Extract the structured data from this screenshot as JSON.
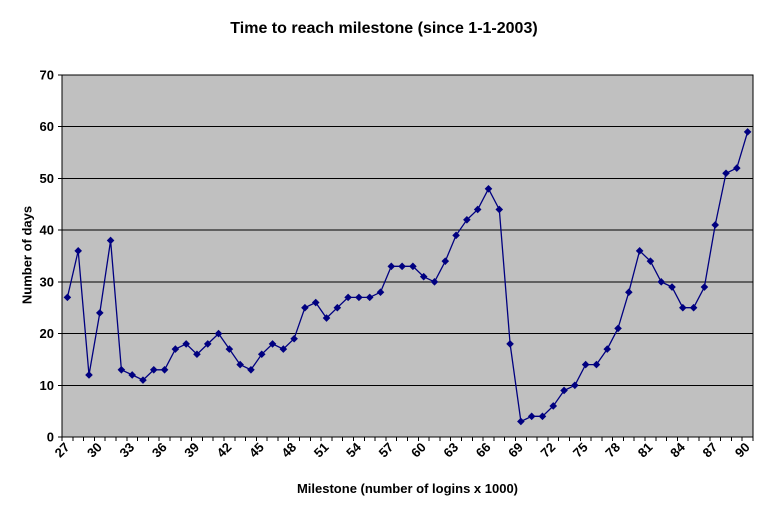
{
  "chart_data": {
    "type": "line",
    "title": "Time to reach milestone (since 1-1-2003)",
    "xlabel": "Milestone (number of logins x 1000)",
    "ylabel": "Number of days",
    "x": [
      27,
      28,
      29,
      30,
      31,
      32,
      33,
      34,
      35,
      36,
      37,
      38,
      39,
      40,
      41,
      42,
      43,
      44,
      45,
      46,
      47,
      48,
      49,
      50,
      51,
      52,
      53,
      54,
      55,
      56,
      57,
      58,
      59,
      60,
      61,
      62,
      63,
      64,
      65,
      66,
      67,
      68,
      69,
      70,
      71,
      72,
      73,
      74,
      75,
      76,
      77,
      78,
      79,
      80,
      81,
      82,
      83,
      84,
      85,
      86,
      87,
      88,
      89,
      90
    ],
    "values": [
      27,
      36,
      12,
      24,
      38,
      13,
      12,
      11,
      13,
      13,
      17,
      18,
      16,
      18,
      20,
      17,
      14,
      13,
      16,
      18,
      17,
      19,
      25,
      26,
      23,
      25,
      27,
      27,
      27,
      28,
      33,
      33,
      33,
      31,
      30,
      34,
      39,
      42,
      44,
      48,
      44,
      18,
      3,
      4,
      4,
      6,
      9,
      10,
      14,
      14,
      17,
      21,
      28,
      36,
      34,
      30,
      29,
      25,
      25,
      29,
      41,
      51,
      52,
      59
    ],
    "ylim": [
      0,
      70
    ],
    "yticks": [
      0,
      10,
      20,
      30,
      40,
      50,
      60,
      70
    ],
    "xtick_label_step": 3,
    "xtick_labels": [
      27,
      30,
      33,
      36,
      39,
      42,
      45,
      48,
      51,
      54,
      57,
      60,
      63,
      66,
      69,
      72,
      75,
      78,
      81,
      84,
      87,
      90
    ],
    "grid": true,
    "legend": false,
    "marker": "diamond",
    "colors": {
      "line": "#000080",
      "marker": "#000080",
      "plot_bg": "#C0C0C0",
      "grid": "#000000",
      "axis": "#000000",
      "text": "#000000",
      "page_bg": "#FFFFFF"
    }
  }
}
